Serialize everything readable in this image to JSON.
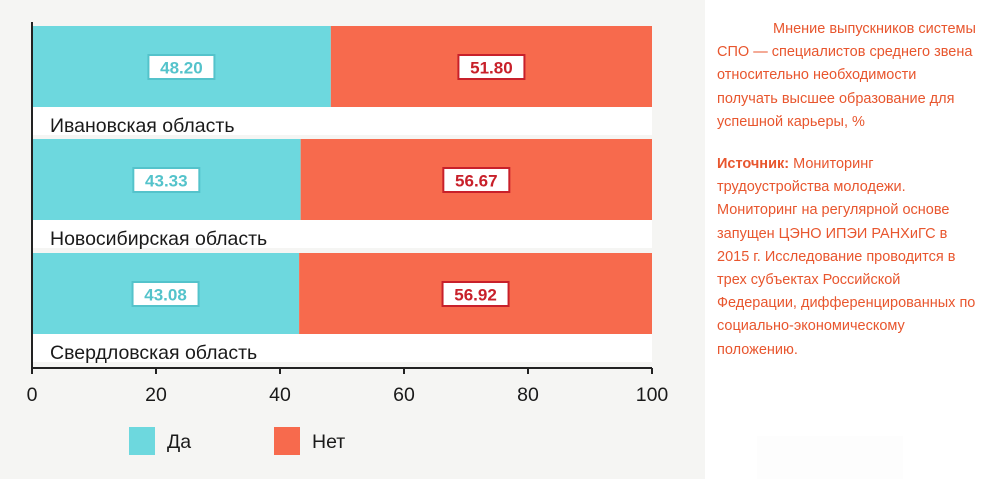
{
  "chart_data": {
    "type": "bar",
    "orientation": "horizontal",
    "stacked": true,
    "categories": [
      "Ивановская область",
      "Новосибирская область",
      "Свердловская область"
    ],
    "series": [
      {
        "name": "Да",
        "values": [
          48.2,
          43.33,
          43.08
        ],
        "color": "#6dd8de",
        "label_color": "#54c3cb"
      },
      {
        "name": "Нет",
        "values": [
          51.8,
          56.67,
          56.92
        ],
        "color": "#f76a4d",
        "label_color": "#c8202a"
      }
    ],
    "value_labels": [
      [
        "48.20",
        "43.33",
        "43.08"
      ],
      [
        "51.80",
        "56.67",
        "56.92"
      ]
    ],
    "xlim": [
      0,
      100
    ],
    "xticks": [
      0,
      20,
      40,
      60,
      80,
      100
    ],
    "xtick_labels": [
      "0",
      "20",
      "40",
      "60",
      "80",
      "100"
    ],
    "legend_position": "bottom-left",
    "grid": false,
    "axis_color": "#222222"
  },
  "note": {
    "description": "Мнение выпускников системы СПО — специалистов среднего звена относительно необходимости получать высшее образование для успешной карьеры, %",
    "source_label": "Источник:",
    "source_text": " Мониторинг трудоустройства молодежи. Мониторинг на регулярной основе запущен ЦЭНО ИПЭИ РАНХиГС в 2015 г. Исследование проводится в трех субъектах Российской Федерации, дифференцированных по социально-экономическому положению.",
    "color": "#e8562e"
  }
}
